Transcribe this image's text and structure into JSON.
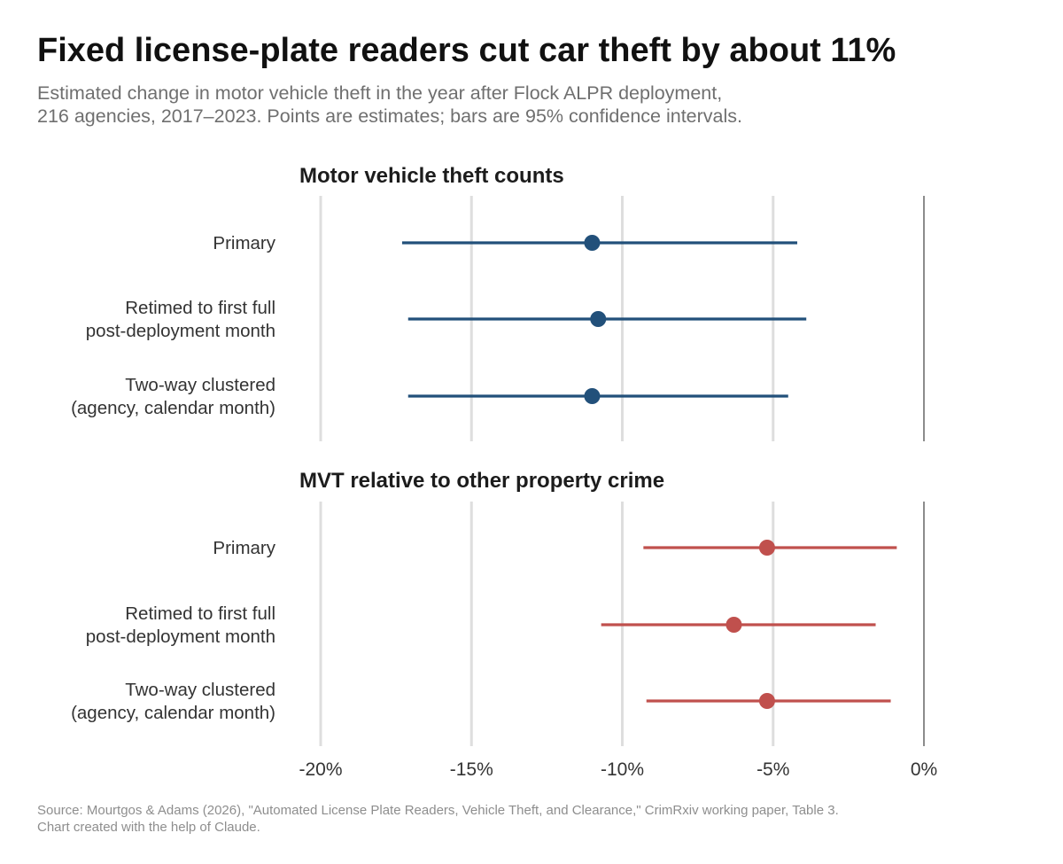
{
  "title": "Fixed license-plate readers cut car theft by about 11%",
  "subtitle": [
    "Estimated change in motor vehicle theft in the year after Flock ALPR deployment,",
    "216 agencies, 2017–2023. Points are estimates; bars are 95% confidence intervals."
  ],
  "caption": [
    "Source: Mourtgos & Adams (2026), \"Automated License Plate Readers, Vehicle Theft, and Clearance,\" CrimRxiv working paper, Table 3.",
    "Chart created with the help of Claude."
  ],
  "chart_data": {
    "type": "dot-interval",
    "x_unit": "%",
    "xlim": [
      -20,
      0
    ],
    "x_ticks": [
      -20,
      -15,
      -10,
      -5,
      0
    ],
    "x_tick_labels": [
      "-20%",
      "-15%",
      "-10%",
      "-5%",
      "0%"
    ],
    "grid": true,
    "reference_line": 0,
    "panels": [
      {
        "title": "Motor vehicle theft counts",
        "color": "#22507a",
        "rows": [
          {
            "label": [
              "Primary"
            ],
            "estimate": -11.0,
            "ci": [
              -17.3,
              -4.2
            ]
          },
          {
            "label": [
              "Retimed to first full",
              "post-deployment month"
            ],
            "estimate": -10.8,
            "ci": [
              -17.1,
              -3.9
            ]
          },
          {
            "label": [
              "Two-way clustered",
              "(agency, calendar month)"
            ],
            "estimate": -11.0,
            "ci": [
              -17.1,
              -4.5
            ]
          }
        ]
      },
      {
        "title": "MVT relative to other property crime",
        "color": "#c0504d",
        "rows": [
          {
            "label": [
              "Primary"
            ],
            "estimate": -5.2,
            "ci": [
              -9.3,
              -0.9
            ]
          },
          {
            "label": [
              "Retimed to first full",
              "post-deployment month"
            ],
            "estimate": -6.3,
            "ci": [
              -10.7,
              -1.6
            ]
          },
          {
            "label": [
              "Two-way clustered",
              "(agency, calendar month)"
            ],
            "estimate": -5.2,
            "ci": [
              -9.2,
              -1.1
            ]
          }
        ]
      }
    ]
  }
}
